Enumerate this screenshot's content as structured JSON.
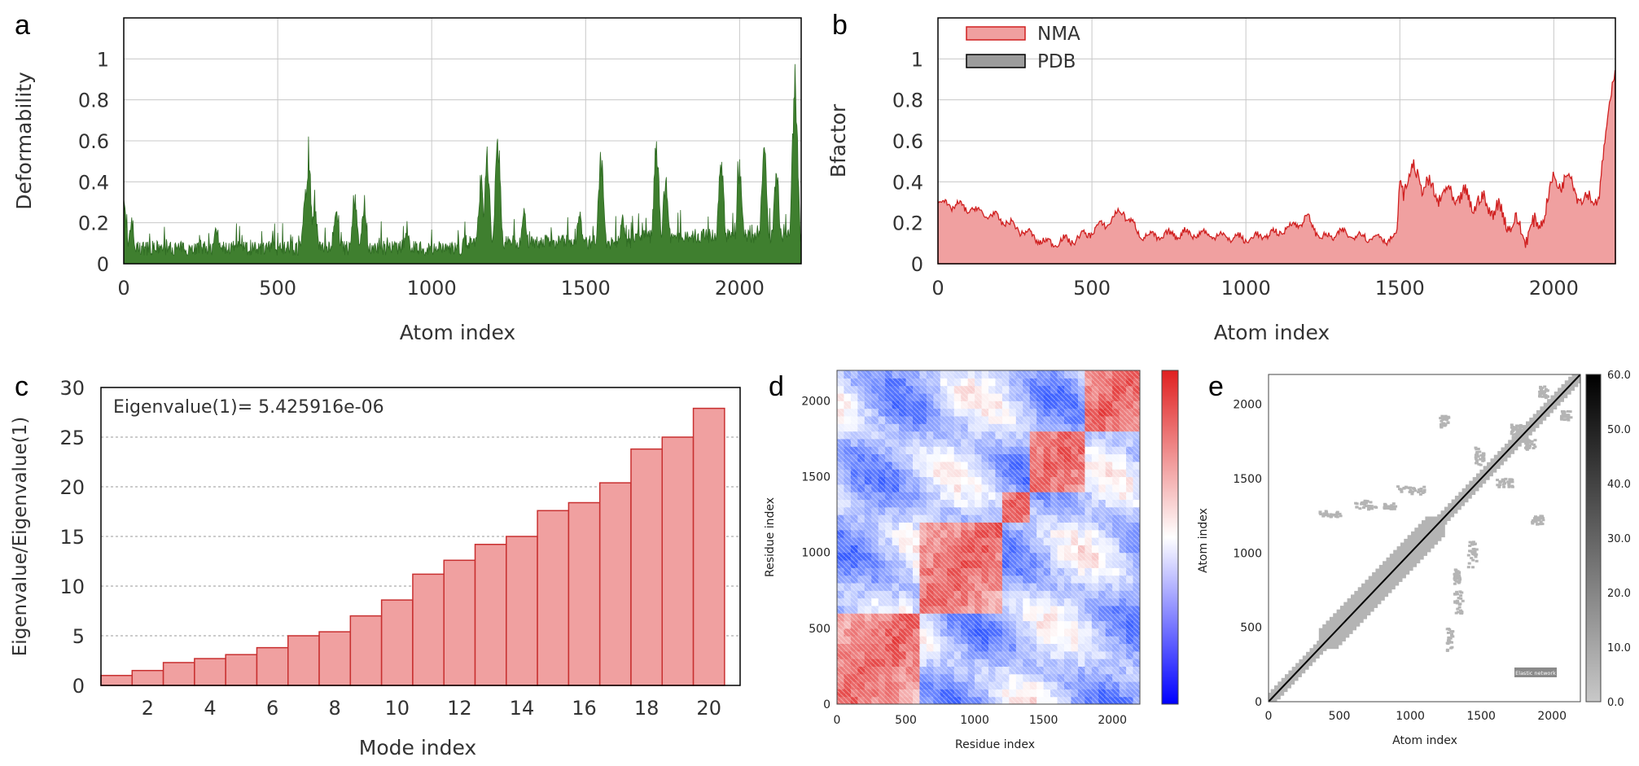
{
  "figure": {
    "panel_letters": [
      "a",
      "b",
      "c",
      "d",
      "e"
    ]
  },
  "chart_data": [
    {
      "panel": "a",
      "type": "area",
      "xlabel": "Atom index",
      "ylabel": "Deformability",
      "xlim": [
        0,
        2200
      ],
      "ylim": [
        0,
        1.2
      ],
      "xticks": [
        "0",
        "500",
        "1000",
        "1500",
        "2000"
      ],
      "yticks": [
        "0",
        "0.2",
        "0.4",
        "0.6",
        "0.8",
        "1"
      ],
      "grid": true,
      "color": "#3f7f2f",
      "baseline_level": 0.08,
      "peaks": [
        [
          0,
          0.32
        ],
        [
          25,
          0.2
        ],
        [
          300,
          0.18
        ],
        [
          590,
          0.38
        ],
        [
          600,
          0.57
        ],
        [
          620,
          0.3
        ],
        [
          690,
          0.27
        ],
        [
          750,
          0.35
        ],
        [
          780,
          0.27
        ],
        [
          920,
          0.18
        ],
        [
          1160,
          0.45
        ],
        [
          1180,
          0.55
        ],
        [
          1215,
          0.66
        ],
        [
          1300,
          0.28
        ],
        [
          1480,
          0.27
        ],
        [
          1550,
          0.58
        ],
        [
          1620,
          0.25
        ],
        [
          1730,
          0.65
        ],
        [
          1760,
          0.45
        ],
        [
          1940,
          0.57
        ],
        [
          2000,
          0.52
        ],
        [
          2080,
          0.6
        ],
        [
          2120,
          0.48
        ],
        [
          2180,
          1.0
        ]
      ]
    },
    {
      "panel": "b",
      "type": "area",
      "xlabel": "Atom index",
      "ylabel": "Bfactor",
      "xlim": [
        0,
        2200
      ],
      "ylim": [
        0,
        1.2
      ],
      "xticks": [
        "0",
        "500",
        "1000",
        "1500",
        "2000"
      ],
      "yticks": [
        "0",
        "0.2",
        "0.4",
        "0.6",
        "0.8",
        "1"
      ],
      "grid": true,
      "legend": {
        "placement": "top-left",
        "entries": [
          {
            "label": "NMA",
            "fill": "#f0a0a0",
            "stroke": "#d02020"
          },
          {
            "label": "PDB",
            "fill": "#9c9c9c",
            "stroke": "#000000"
          }
        ]
      },
      "series": [
        {
          "name": "NMA",
          "x": [
            0,
            100,
            200,
            300,
            350,
            450,
            550,
            600,
            650,
            700,
            800,
            900,
            1000,
            1100,
            1200,
            1250,
            1300,
            1400,
            1490,
            1500,
            1510,
            1550,
            1600,
            1700,
            1800,
            1900,
            1950,
            2000,
            2050,
            2100,
            2150,
            2190,
            2200
          ],
          "y": [
            0.3,
            0.27,
            0.22,
            0.14,
            0.1,
            0.12,
            0.2,
            0.26,
            0.15,
            0.13,
            0.15,
            0.14,
            0.12,
            0.15,
            0.22,
            0.12,
            0.15,
            0.13,
            0.12,
            0.42,
            0.38,
            0.45,
            0.35,
            0.32,
            0.28,
            0.15,
            0.18,
            0.4,
            0.42,
            0.3,
            0.35,
            0.9,
            1.0
          ]
        }
      ]
    },
    {
      "panel": "c",
      "type": "bar",
      "xlabel": "Mode index",
      "ylabel": "Eigenvalue/Eigenvalue(1)",
      "annotation": "Eigenvalue(1)= 5.425916e-06",
      "categories": [
        "1",
        "2",
        "3",
        "4",
        "5",
        "6",
        "7",
        "8",
        "9",
        "10",
        "11",
        "12",
        "13",
        "14",
        "15",
        "16",
        "17",
        "18",
        "19",
        "20"
      ],
      "values": [
        1.0,
        1.5,
        2.3,
        2.7,
        3.1,
        3.8,
        5.0,
        5.4,
        7.0,
        8.6,
        11.2,
        12.6,
        14.2,
        15.0,
        17.6,
        18.4,
        20.4,
        23.8,
        25.0,
        27.9
      ],
      "xticks": [
        "2",
        "4",
        "6",
        "8",
        "10",
        "12",
        "14",
        "16",
        "18",
        "20"
      ],
      "yticks": [
        "0",
        "5",
        "10",
        "15",
        "20",
        "25",
        "30"
      ],
      "ylim": [
        0,
        30
      ],
      "color": "#f0a0a0",
      "edge": "#c83030"
    },
    {
      "panel": "d",
      "type": "heatmap",
      "xlabel": "Residue index",
      "ylabel": "Residue index",
      "xticks": [
        "0",
        "500",
        "1000",
        "1500",
        "2000"
      ],
      "yticks": [
        "0",
        "500",
        "1000",
        "1500",
        "2000"
      ],
      "xlim": [
        0,
        2200
      ],
      "ylim": [
        0,
        2200
      ],
      "blocks": [
        [
          0,
          600
        ],
        [
          600,
          1200
        ],
        [
          1200,
          1400
        ],
        [
          1400,
          1800
        ],
        [
          1800,
          2200
        ]
      ],
      "colormap": [
        "#0000ff",
        "#ffffff",
        "#e02020"
      ]
    },
    {
      "panel": "e",
      "type": "heatmap",
      "xlabel": "Atom index",
      "ylabel": "Atom index",
      "xticks": [
        "0",
        "500",
        "1000",
        "1500",
        "2000"
      ],
      "yticks": [
        "0",
        "500",
        "1000",
        "1500",
        "2000"
      ],
      "xlim": [
        0,
        2200
      ],
      "ylim": [
        0,
        2200
      ],
      "colorbar_ticks": [
        "0.0",
        "10.0",
        "20.0",
        "30.0",
        "40.0",
        "50.0",
        "60.0"
      ],
      "inset_label": "Elastic network",
      "contact_patches": [
        [
          600,
          1300,
          150,
          60
        ],
        [
          1300,
          600,
          60,
          150
        ],
        [
          350,
          1250,
          150,
          40
        ],
        [
          1250,
          350,
          40,
          150
        ],
        [
          800,
          1300,
          100,
          40
        ],
        [
          1300,
          800,
          40,
          100
        ],
        [
          1400,
          900,
          60,
          200
        ],
        [
          900,
          1400,
          200,
          60
        ],
        [
          1850,
          1200,
          80,
          60
        ],
        [
          1200,
          1850,
          60,
          80
        ],
        [
          1900,
          2050,
          60,
          80
        ],
        [
          2050,
          1900,
          80,
          60
        ],
        [
          1700,
          1800,
          70,
          70
        ],
        [
          1800,
          1700,
          70,
          70
        ],
        [
          1450,
          1600,
          60,
          120
        ],
        [
          1600,
          1450,
          120,
          60
        ]
      ]
    }
  ]
}
